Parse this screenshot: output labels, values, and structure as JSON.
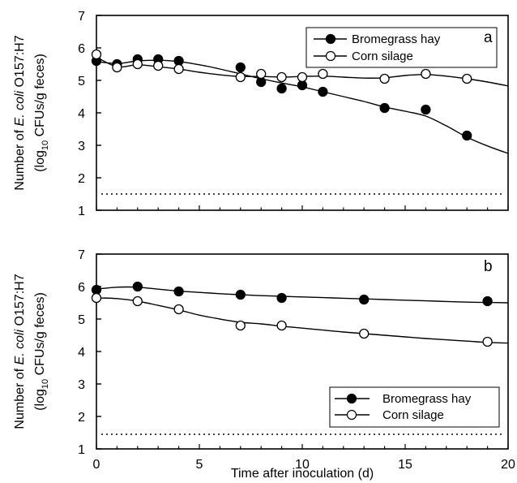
{
  "chart_data": [
    {
      "type": "line",
      "panel_label": "a",
      "xlim": [
        0,
        20
      ],
      "ylim": [
        1,
        7
      ],
      "yticks": [
        "1",
        "2",
        "3",
        "4",
        "5",
        "6",
        "7"
      ],
      "ylabel_line1_pre": "Number of ",
      "ylabel_line1_italic": "E. coli",
      "ylabel_line1_post": " O157:H7",
      "ylabel_line2_pre": "(log",
      "ylabel_line2_sub": "10",
      "ylabel_line2_post": " CFUs/g feces)",
      "detection_limit": 1.5,
      "legend_position": "top-right",
      "series": [
        {
          "name": "Bromegrass hay",
          "marker": "filled-circle",
          "x": [
            0,
            1,
            2,
            3,
            4,
            7,
            8,
            9,
            10,
            11,
            14,
            16,
            18
          ],
          "y": [
            5.6,
            5.5,
            5.65,
            5.65,
            5.6,
            5.4,
            4.95,
            4.75,
            4.85,
            4.65,
            4.15,
            4.1,
            3.3
          ],
          "curve_x": [
            0,
            1,
            2,
            3,
            4,
            5,
            6,
            7,
            8,
            9,
            10,
            11,
            12,
            13,
            14,
            15,
            16,
            17,
            18,
            19,
            20
          ],
          "curve_y": [
            5.58,
            5.52,
            5.6,
            5.62,
            5.58,
            5.48,
            5.35,
            5.2,
            5.05,
            4.92,
            4.8,
            4.65,
            4.5,
            4.35,
            4.18,
            4.05,
            3.9,
            3.6,
            3.25,
            2.98,
            2.75
          ]
        },
        {
          "name": "Corn silage",
          "marker": "open-circle",
          "x": [
            0,
            1,
            2,
            3,
            4,
            7,
            8,
            9,
            10,
            11,
            14,
            16,
            18
          ],
          "y": [
            5.8,
            5.4,
            5.5,
            5.45,
            5.35,
            5.1,
            5.2,
            5.1,
            5.1,
            5.2,
            5.05,
            5.2,
            5.05
          ],
          "curve_x": [
            0,
            1,
            2,
            3,
            4,
            5,
            6,
            7,
            8,
            9,
            10,
            11,
            12,
            13,
            14,
            15,
            16,
            17,
            18,
            19,
            20
          ],
          "curve_y": [
            5.72,
            5.42,
            5.48,
            5.42,
            5.35,
            5.25,
            5.17,
            5.12,
            5.12,
            5.1,
            5.12,
            5.13,
            5.1,
            5.07,
            5.08,
            5.15,
            5.18,
            5.13,
            5.05,
            4.95,
            4.83
          ]
        }
      ]
    },
    {
      "type": "line",
      "panel_label": "b",
      "xlim": [
        0,
        20
      ],
      "ylim": [
        1,
        7
      ],
      "yticks": [
        "1",
        "2",
        "3",
        "4",
        "5",
        "6",
        "7"
      ],
      "xticks": [
        "0",
        "5",
        "10",
        "15",
        "20"
      ],
      "xlabel": "Time after inoculation (d)",
      "ylabel_line1_pre": "Number of ",
      "ylabel_line1_italic": "E. coli",
      "ylabel_line1_post": " O157:H7",
      "ylabel_line2_pre": "(log",
      "ylabel_line2_sub": "10",
      "ylabel_line2_post": " CFUs/g feces)",
      "detection_limit": 1.45,
      "legend_position": "bottom-right",
      "series": [
        {
          "name": "Bromegrass hay",
          "marker": "filled-circle",
          "x": [
            0,
            2,
            4,
            7,
            9,
            13,
            19
          ],
          "y": [
            5.9,
            6.0,
            5.85,
            5.75,
            5.65,
            5.6,
            5.55
          ],
          "curve_x": [
            0,
            1,
            2,
            3,
            4,
            5,
            6,
            7,
            8,
            9,
            10,
            11,
            12,
            13,
            14,
            15,
            16,
            17,
            18,
            19,
            20
          ],
          "curve_y": [
            5.92,
            5.98,
            5.98,
            5.92,
            5.86,
            5.82,
            5.78,
            5.75,
            5.72,
            5.7,
            5.68,
            5.66,
            5.64,
            5.62,
            5.6,
            5.58,
            5.56,
            5.54,
            5.52,
            5.51,
            5.5
          ]
        },
        {
          "name": "Corn silage",
          "marker": "open-circle",
          "x": [
            0,
            2,
            4,
            7,
            9,
            13,
            19
          ],
          "y": [
            5.65,
            5.55,
            5.3,
            4.8,
            4.8,
            4.55,
            4.3
          ],
          "curve_x": [
            0,
            1,
            2,
            3,
            4,
            5,
            6,
            7,
            8,
            9,
            10,
            11,
            12,
            13,
            14,
            15,
            16,
            17,
            18,
            19,
            20
          ],
          "curve_y": [
            5.65,
            5.63,
            5.55,
            5.42,
            5.28,
            5.12,
            5.0,
            4.9,
            4.85,
            4.78,
            4.72,
            4.66,
            4.6,
            4.55,
            4.5,
            4.45,
            4.4,
            4.36,
            4.32,
            4.28,
            4.26
          ]
        }
      ]
    }
  ]
}
